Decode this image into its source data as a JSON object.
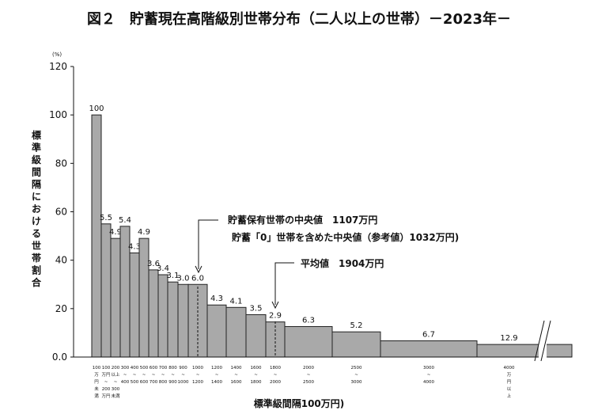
{
  "chart_data": {
    "type": "bar",
    "title": "図２　貯蓄現在高階級別世帯分布（二人以上の世帯）－2023年－",
    "ylabel": "標準級間隔における世帯割合",
    "yunit": "(%)",
    "xlabel": "標準級間隔100万円)",
    "ylim": [
      0,
      120
    ],
    "yticks": [
      "0.0",
      "20",
      "40",
      "60",
      "80",
      "100",
      "120"
    ],
    "grid": false,
    "bars": [
      {
        "value": 100,
        "label": "100",
        "tick": [
          "100",
          "万",
          "円",
          "未",
          "満"
        ]
      },
      {
        "value": 55,
        "label": "5.5",
        "tick": [
          "100",
          "万円",
          "~",
          "200",
          "万円"
        ]
      },
      {
        "value": 49,
        "label": "4.9",
        "tick": [
          "200",
          "以上",
          "~",
          "300",
          "未満"
        ]
      },
      {
        "value": 54,
        "label": "5.4",
        "tick": [
          "300",
          "~",
          "400"
        ]
      },
      {
        "value": 43,
        "label": "4.3",
        "tick": [
          "400",
          "~",
          "500"
        ]
      },
      {
        "value": 49,
        "label": "4.9",
        "tick": [
          "500",
          "~",
          "600"
        ]
      },
      {
        "value": 36,
        "label": "3.6",
        "tick": [
          "600",
          "~",
          "700"
        ]
      },
      {
        "value": 34,
        "label": "3.4",
        "tick": [
          "700",
          "~",
          "800"
        ]
      },
      {
        "value": 31,
        "label": "3.1",
        "tick": [
          "800",
          "~",
          "900"
        ]
      },
      {
        "value": 30,
        "label": "3.0",
        "tick": [
          "900",
          "~",
          "1000"
        ]
      },
      {
        "value": 30,
        "label": "6.0",
        "tick": [
          "1000",
          "~",
          "1200"
        ]
      },
      {
        "value": 21.5,
        "label": "4.3",
        "tick": [
          "1200",
          "~",
          "1400"
        ]
      },
      {
        "value": 20.5,
        "label": "4.1",
        "tick": [
          "1400",
          "~",
          "1600"
        ]
      },
      {
        "value": 17.5,
        "label": "3.5",
        "tick": [
          "1600",
          "~",
          "1800"
        ]
      },
      {
        "value": 14.5,
        "label": "2.9",
        "tick": [
          "1800",
          "~",
          "2000"
        ]
      },
      {
        "value": 12.6,
        "label": "6.3",
        "tick": [
          "2000",
          "~",
          "2500"
        ]
      },
      {
        "value": 10.4,
        "label": "5.2",
        "tick": [
          "2500",
          "~",
          "3000"
        ]
      },
      {
        "value": 6.7,
        "label": "6.7",
        "tick": [
          "3000",
          "~",
          "4000"
        ]
      },
      {
        "value": 5.2,
        "label": "12.9",
        "tick": [
          "4000",
          "万",
          "円",
          "以",
          "上"
        ]
      }
    ],
    "annotations": {
      "median_line1": "貯蓄保有世帯の中央値　1107万円",
      "median_line2": "貯蓄「0」世帯を含めた中央値（参考値）1032万円)",
      "mean": "平均値　1904万円"
    }
  }
}
